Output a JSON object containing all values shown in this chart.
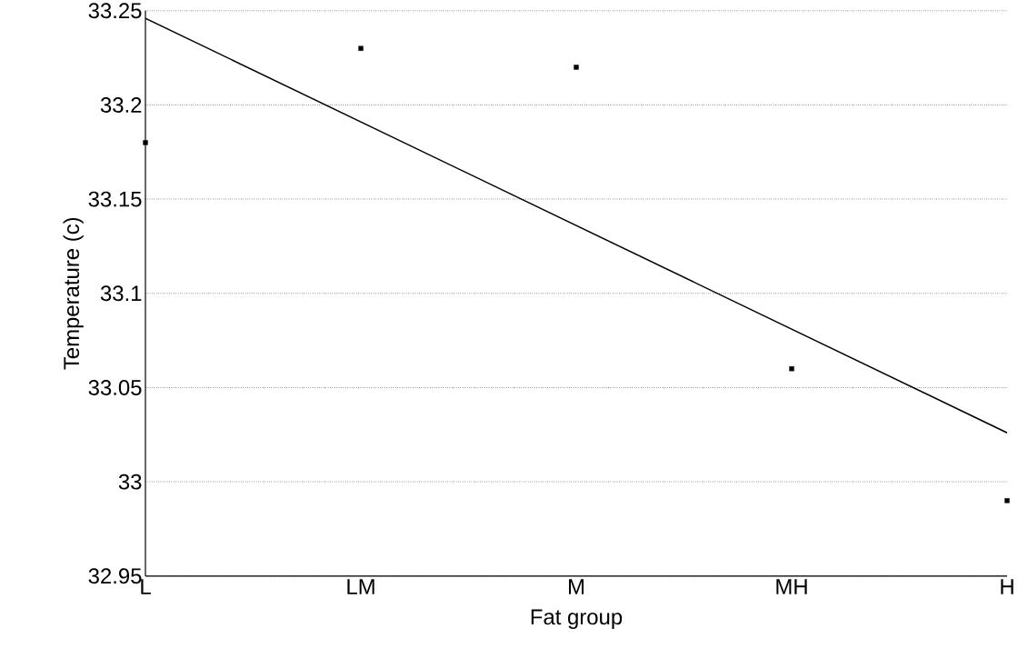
{
  "chart_data": {
    "type": "scatter",
    "xlabel": "Fat group",
    "ylabel": "Temperature (c)",
    "categories": [
      "L",
      "LM",
      "M",
      "MH",
      "H"
    ],
    "series": [
      {
        "color": "#000000",
        "marker": "square",
        "values": [
          33.18,
          33.23,
          33.22,
          33.06,
          32.99
        ]
      },
      {
        "type": "line",
        "color": "#000000",
        "line_style": "solid",
        "marker": "none",
        "x": [
          "L",
          "H"
        ],
        "values": [
          33.246,
          33.026
        ]
      }
    ],
    "ylim": [
      32.95,
      33.25
    ],
    "yticks": [
      32.95,
      33,
      33.05,
      33.1,
      33.15,
      33.2,
      33.25
    ],
    "grid": "y"
  }
}
